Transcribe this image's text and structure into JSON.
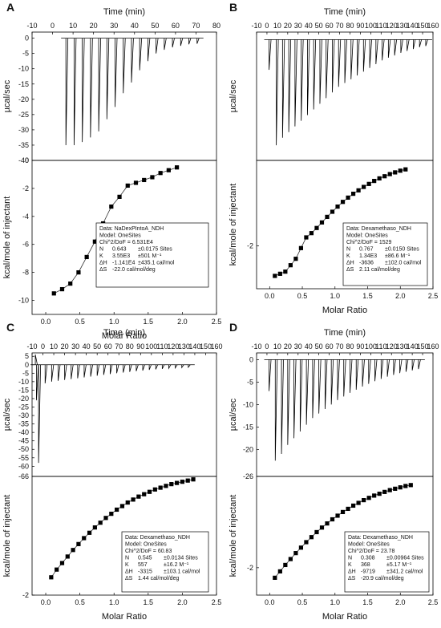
{
  "panels": [
    {
      "letter": "A",
      "raw": {
        "xlabel_top": "Time (min)",
        "ylabel": "µcal/sec",
        "xticks": [
          "-10",
          "0",
          "10",
          "20",
          "30",
          "40",
          "50",
          "60",
          "70",
          "80"
        ],
        "yticks": [
          "-40",
          "-35",
          "-30",
          "-25",
          "-20",
          "-15",
          "-10",
          "-5",
          "0"
        ]
      },
      "binding": {
        "xlabel": "Molar Ratio",
        "ylabel": "kcal/mole of injectant",
        "xticks": [
          "0.0",
          "0.5",
          "1.0",
          "1.5",
          "2.0",
          "2.5"
        ],
        "yticks": [
          "-10",
          "-8",
          "-6",
          "-4",
          "-2",
          "0"
        ],
        "fit_box": {
          "lines": [
            "Data: NaDexPIntoA_NDH",
            "Model: OneSites",
            "Chi^2/DoF = 6.531E4"
          ],
          "rows": [
            {
              "label": "N",
              "value": "0.643",
              "err": "±0.0175 Sites"
            },
            {
              "label": "K",
              "value": "3.55E3",
              "err": "±501 M⁻¹"
            },
            {
              "label": "ΔH",
              "value": "-1.141E4",
              "err": "±435.1 cal/mol"
            },
            {
              "label": "ΔS",
              "value": "-22.0 cal/mol/deg",
              "err": ""
            }
          ]
        }
      }
    },
    {
      "letter": "B",
      "raw": {
        "xlabel_top": "Time (min)",
        "ylabel": "µcal/sec",
        "xticks": [
          "-10",
          "0",
          "10",
          "20",
          "30",
          "40",
          "50",
          "60",
          "70",
          "80",
          "90",
          "100",
          "110",
          "120",
          "130",
          "140",
          "150",
          "160"
        ],
        "yticks": []
      },
      "binding": {
        "xlabel": "Molar Ratio",
        "ylabel": "kcal/mole of injectant",
        "xticks": [
          "0.0",
          "0.5",
          "1.0",
          "1.5",
          "2.0",
          "2.5"
        ],
        "yticks": [
          "-2"
        ],
        "fit_box": {
          "lines": [
            "Data: Dexamethaso_NDH",
            "Model: OneSites",
            "Chi^2/DoF = 1529"
          ],
          "rows": [
            {
              "label": "N",
              "value": "0.767",
              "err": "±0.0150 Sites"
            },
            {
              "label": "K",
              "value": "1.34E3",
              "err": "±86.6 M⁻¹"
            },
            {
              "label": "ΔH",
              "value": "-3636",
              "err": "±102.0 cal/mol"
            },
            {
              "label": "ΔS",
              "value": "2.11 cal/mol/deg",
              "err": ""
            }
          ]
        }
      }
    },
    {
      "letter": "C",
      "raw": {
        "xlabel_top": "Time (min)",
        "ylabel": "µcal/sec",
        "xticks": [
          "-10",
          "0",
          "10",
          "20",
          "30",
          "40",
          "50",
          "60",
          "70",
          "80",
          "90",
          "100",
          "110",
          "120",
          "130",
          "140",
          "150",
          "160"
        ],
        "yticks": [
          "-66",
          "-60",
          "-55",
          "-50",
          "-45",
          "-40",
          "-35",
          "-30",
          "-25",
          "-20",
          "-15",
          "-10",
          "-5",
          "0",
          "5"
        ]
      },
      "binding": {
        "xlabel": "Molar Ratio",
        "ylabel": "kcal/mole of injectant",
        "xticks": [
          "0.0",
          "0.5",
          "1.0",
          "1.5",
          "2.0",
          "2.5"
        ],
        "yticks": [
          "-2"
        ],
        "fit_box": {
          "lines": [
            "Data: Dexamethaso_NDH",
            "Model: OneSites",
            "Chi^2/DoF = 60.83"
          ],
          "rows": [
            {
              "label": "N",
              "value": "0.545",
              "err": "±0.0134 Sites"
            },
            {
              "label": "K",
              "value": "557",
              "err": "±16.2 M⁻¹"
            },
            {
              "label": "ΔH",
              "value": "-3315",
              "err": "±103.1 cal/mol"
            },
            {
              "label": "ΔS",
              "value": "1.44 cal/mol/deg",
              "err": ""
            }
          ]
        }
      }
    },
    {
      "letter": "D",
      "raw": {
        "xlabel_top": "Time (min)",
        "ylabel": "µcal/sec",
        "xticks": [
          "-10",
          "0",
          "10",
          "20",
          "30",
          "40",
          "50",
          "60",
          "70",
          "80",
          "90",
          "100",
          "110",
          "120",
          "130",
          "140",
          "150",
          "160"
        ],
        "yticks": [
          "-26",
          "-20",
          "-15",
          "-10",
          "-5",
          "0"
        ]
      },
      "binding": {
        "xlabel": "Molar Ratio",
        "ylabel": "kcal/mole of injectant",
        "xticks": [
          "0.0",
          "0.5",
          "1.0",
          "1.5",
          "2.0",
          "2.5"
        ],
        "yticks": [
          "-2"
        ],
        "fit_box": {
          "lines": [
            "Data: Dexamethaso_NDH",
            "Model: OneSites",
            "Chi^2/DoF = 23.78"
          ],
          "rows": [
            {
              "label": "N",
              "value": "0.308",
              "err": "±0.00964 Sites"
            },
            {
              "label": "K",
              "value": "368",
              "err": "±5.17 M⁻¹"
            },
            {
              "label": "ΔH",
              "value": "-9719",
              "err": "±341.2 cal/mol"
            },
            {
              "label": "ΔS",
              "value": "-20.9 cal/mol/deg",
              "err": ""
            }
          ]
        }
      }
    }
  ],
  "chart_data": [
    {
      "panel": "A",
      "type": "line",
      "title": "",
      "xlabel": "Time (min)",
      "ylabel": "µcal/sec",
      "xlim": [
        -10,
        80
      ],
      "ylim": [
        -40,
        2
      ],
      "series": [
        {
          "values": [
            {
              "t": 6.5,
              "peak": -35.0
            },
            {
              "t": 10.5,
              "peak": -35.0
            },
            {
              "t": 14.5,
              "peak": -34.0
            },
            {
              "t": 18.5,
              "peak": -32.5
            },
            {
              "t": 22.5,
              "peak": -30.5
            },
            {
              "t": 26.5,
              "peak": -26.5
            },
            {
              "t": 30.5,
              "peak": -22.5
            },
            {
              "t": 34.5,
              "peak": -18.0
            },
            {
              "t": 38.5,
              "peak": -14.5
            },
            {
              "t": 42.5,
              "peak": -10.5
            },
            {
              "t": 46.5,
              "peak": -7.5
            },
            {
              "t": 50.5,
              "peak": -5.0
            },
            {
              "t": 54.5,
              "peak": -3.8
            },
            {
              "t": 58.5,
              "peak": -3.0
            },
            {
              "t": 62.5,
              "peak": -2.5
            },
            {
              "t": 66.5,
              "peak": -2.0
            },
            {
              "t": 70.5,
              "peak": -1.8
            }
          ]
        }
      ]
    },
    {
      "panel": "A",
      "type": "scatter",
      "title": "",
      "xlabel": "Molar Ratio",
      "ylabel": "kcal/mole of injectant",
      "xlim": [
        -0.2,
        2.5
      ],
      "ylim": [
        -11,
        0
      ],
      "series": [
        {
          "x": [
            0.12,
            0.24,
            0.36,
            0.48,
            0.6,
            0.72,
            0.84,
            0.96,
            1.08,
            1.2,
            1.32,
            1.44,
            1.56,
            1.68,
            1.8,
            1.92
          ],
          "y": [
            -9.5,
            -9.2,
            -8.8,
            -8.0,
            -6.9,
            -5.8,
            -4.5,
            -3.3,
            -2.6,
            -1.8,
            -1.6,
            -1.4,
            -1.2,
            -0.9,
            -0.7,
            -0.5
          ]
        }
      ]
    },
    {
      "panel": "B",
      "type": "line",
      "title": "",
      "xlabel": "Time (min)",
      "ylabel": "µcal/sec",
      "xlim": [
        -10,
        160
      ],
      "ylim": [
        -32,
        2
      ],
      "series": [
        {
          "values": [
            {
              "t": 2,
              "peak": -8.0
            },
            {
              "t": 9,
              "peak": -28.0
            },
            {
              "t": 15,
              "peak": -26.0
            },
            {
              "t": 21,
              "peak": -24.5
            },
            {
              "t": 27,
              "peak": -23.0
            },
            {
              "t": 33,
              "peak": -21.5
            },
            {
              "t": 39,
              "peak": -20.0
            },
            {
              "t": 45,
              "peak": -18.5
            },
            {
              "t": 51,
              "peak": -17.0
            },
            {
              "t": 57,
              "peak": -15.5
            },
            {
              "t": 63,
              "peak": -14.0
            },
            {
              "t": 69,
              "peak": -12.5
            },
            {
              "t": 75,
              "peak": -11.5
            },
            {
              "t": 81,
              "peak": -10.5
            },
            {
              "t": 87,
              "peak": -9.5
            },
            {
              "t": 93,
              "peak": -8.5
            },
            {
              "t": 99,
              "peak": -7.5
            },
            {
              "t": 105,
              "peak": -6.5
            },
            {
              "t": 111,
              "peak": -5.5
            },
            {
              "t": 117,
              "peak": -4.8
            },
            {
              "t": 123,
              "peak": -4.2
            },
            {
              "t": 129,
              "peak": -3.5
            },
            {
              "t": 135,
              "peak": -3.0
            },
            {
              "t": 141,
              "peak": -2.5
            },
            {
              "t": 147,
              "peak": -2.0
            },
            {
              "t": 153,
              "peak": -1.7
            }
          ]
        }
      ]
    },
    {
      "panel": "B",
      "type": "scatter",
      "title": "",
      "xlabel": "Molar Ratio",
      "ylabel": "kcal/mole of injectant",
      "xlim": [
        -0.2,
        2.5
      ],
      "ylim": [
        -3.0,
        0
      ],
      "series": [
        {
          "x": [
            0.08,
            0.16,
            0.24,
            0.32,
            0.4,
            0.48,
            0.56,
            0.64,
            0.72,
            0.8,
            0.88,
            0.96,
            1.04,
            1.12,
            1.2,
            1.28,
            1.36,
            1.44,
            1.52,
            1.6,
            1.68,
            1.76,
            1.84,
            1.92,
            2.0,
            2.08
          ],
          "y": [
            -2.7,
            -2.65,
            -2.6,
            -2.45,
            -2.3,
            -2.05,
            -1.8,
            -1.7,
            -1.58,
            -1.45,
            -1.32,
            -1.2,
            -1.08,
            -0.97,
            -0.87,
            -0.78,
            -0.7,
            -0.62,
            -0.55,
            -0.48,
            -0.42,
            -0.37,
            -0.32,
            -0.28,
            -0.24,
            -0.21
          ]
        }
      ]
    },
    {
      "panel": "C",
      "type": "line",
      "title": "",
      "xlabel": "Time (min)",
      "ylabel": "µcal/sec",
      "xlim": [
        -10,
        160
      ],
      "ylim": [
        -66,
        7
      ],
      "series": [
        {
          "values": [
            {
              "t": -7,
              "peak": 6.0
            },
            {
              "t": -6,
              "peak": -21.0
            },
            {
              "t": -4,
              "peak": -58.0
            },
            {
              "t": 2,
              "peak": -11.0
            },
            {
              "t": 8,
              "peak": -10.0
            },
            {
              "t": 14,
              "peak": -9.5
            },
            {
              "t": 20,
              "peak": -9.0
            },
            {
              "t": 26,
              "peak": -8.5
            },
            {
              "t": 32,
              "peak": -8.0
            },
            {
              "t": 38,
              "peak": -7.5
            },
            {
              "t": 44,
              "peak": -7.0
            },
            {
              "t": 50,
              "peak": -6.5
            },
            {
              "t": 56,
              "peak": -6.0
            },
            {
              "t": 62,
              "peak": -5.5
            },
            {
              "t": 68,
              "peak": -5.0
            },
            {
              "t": 74,
              "peak": -4.6
            },
            {
              "t": 80,
              "peak": -4.2
            },
            {
              "t": 86,
              "peak": -3.8
            },
            {
              "t": 92,
              "peak": -3.4
            },
            {
              "t": 98,
              "peak": -3.0
            },
            {
              "t": 104,
              "peak": -2.7
            },
            {
              "t": 110,
              "peak": -2.4
            },
            {
              "t": 116,
              "peak": -2.1
            },
            {
              "t": 122,
              "peak": -1.9
            },
            {
              "t": 128,
              "peak": -1.7
            },
            {
              "t": 134,
              "peak": -1.5
            }
          ]
        }
      ]
    },
    {
      "panel": "C",
      "type": "scatter",
      "title": "",
      "xlabel": "Molar Ratio",
      "ylabel": "kcal/mole of injectant",
      "xlim": [
        -0.2,
        2.5
      ],
      "ylim": [
        -2.0,
        0
      ],
      "series": [
        {
          "x": [
            0.08,
            0.16,
            0.24,
            0.32,
            0.4,
            0.48,
            0.56,
            0.64,
            0.72,
            0.8,
            0.88,
            0.96,
            1.04,
            1.12,
            1.2,
            1.28,
            1.36,
            1.44,
            1.52,
            1.6,
            1.68,
            1.76,
            1.84,
            1.92,
            2.0,
            2.08,
            2.16
          ],
          "y": [
            -1.7,
            -1.57,
            -1.46,
            -1.35,
            -1.24,
            -1.14,
            -1.04,
            -0.95,
            -0.86,
            -0.78,
            -0.7,
            -0.63,
            -0.56,
            -0.5,
            -0.44,
            -0.39,
            -0.34,
            -0.3,
            -0.26,
            -0.22,
            -0.19,
            -0.16,
            -0.13,
            -0.11,
            -0.09,
            -0.07,
            -0.05
          ]
        }
      ]
    },
    {
      "panel": "D",
      "type": "line",
      "title": "",
      "xlabel": "Time (min)",
      "ylabel": "µcal/sec",
      "xlim": [
        -10,
        160
      ],
      "ylim": [
        -26,
        1.5
      ],
      "series": [
        {
          "values": [
            {
              "t": 2,
              "peak": -7.0
            },
            {
              "t": 8,
              "peak": -22.5
            },
            {
              "t": 14,
              "peak": -21.0
            },
            {
              "t": 20,
              "peak": -19.0
            },
            {
              "t": 26,
              "peak": -17.5
            },
            {
              "t": 32,
              "peak": -16.0
            },
            {
              "t": 38,
              "peak": -14.5
            },
            {
              "t": 44,
              "peak": -13.0
            },
            {
              "t": 50,
              "peak": -12.0
            },
            {
              "t": 56,
              "peak": -11.0
            },
            {
              "t": 62,
              "peak": -10.0
            },
            {
              "t": 68,
              "peak": -9.0
            },
            {
              "t": 74,
              "peak": -8.2
            },
            {
              "t": 80,
              "peak": -7.4
            },
            {
              "t": 86,
              "peak": -6.7
            },
            {
              "t": 92,
              "peak": -6.0
            },
            {
              "t": 98,
              "peak": -5.4
            },
            {
              "t": 104,
              "peak": -4.8
            },
            {
              "t": 110,
              "peak": -4.3
            },
            {
              "t": 116,
              "peak": -3.8
            },
            {
              "t": 122,
              "peak": -3.4
            },
            {
              "t": 128,
              "peak": -3.0
            },
            {
              "t": 134,
              "peak": -2.7
            },
            {
              "t": 140,
              "peak": -2.4
            },
            {
              "t": 146,
              "peak": -2.1
            }
          ]
        }
      ]
    },
    {
      "panel": "D",
      "type": "scatter",
      "title": "",
      "xlabel": "Molar Ratio",
      "ylabel": "kcal/mole of injectant",
      "xlim": [
        -0.2,
        2.5
      ],
      "ylim": [
        -2.6,
        0
      ],
      "series": [
        {
          "x": [
            0.08,
            0.16,
            0.24,
            0.32,
            0.4,
            0.48,
            0.56,
            0.64,
            0.72,
            0.8,
            0.88,
            0.96,
            1.04,
            1.12,
            1.2,
            1.28,
            1.36,
            1.44,
            1.52,
            1.6,
            1.68,
            1.76,
            1.84,
            1.92,
            2.0,
            2.08,
            2.16
          ],
          "y": [
            -2.22,
            -2.08,
            -1.94,
            -1.81,
            -1.68,
            -1.56,
            -1.44,
            -1.33,
            -1.22,
            -1.12,
            -1.03,
            -0.94,
            -0.86,
            -0.78,
            -0.71,
            -0.64,
            -0.58,
            -0.52,
            -0.47,
            -0.42,
            -0.38,
            -0.34,
            -0.3,
            -0.27,
            -0.24,
            -0.21,
            -0.19
          ]
        }
      ]
    }
  ]
}
